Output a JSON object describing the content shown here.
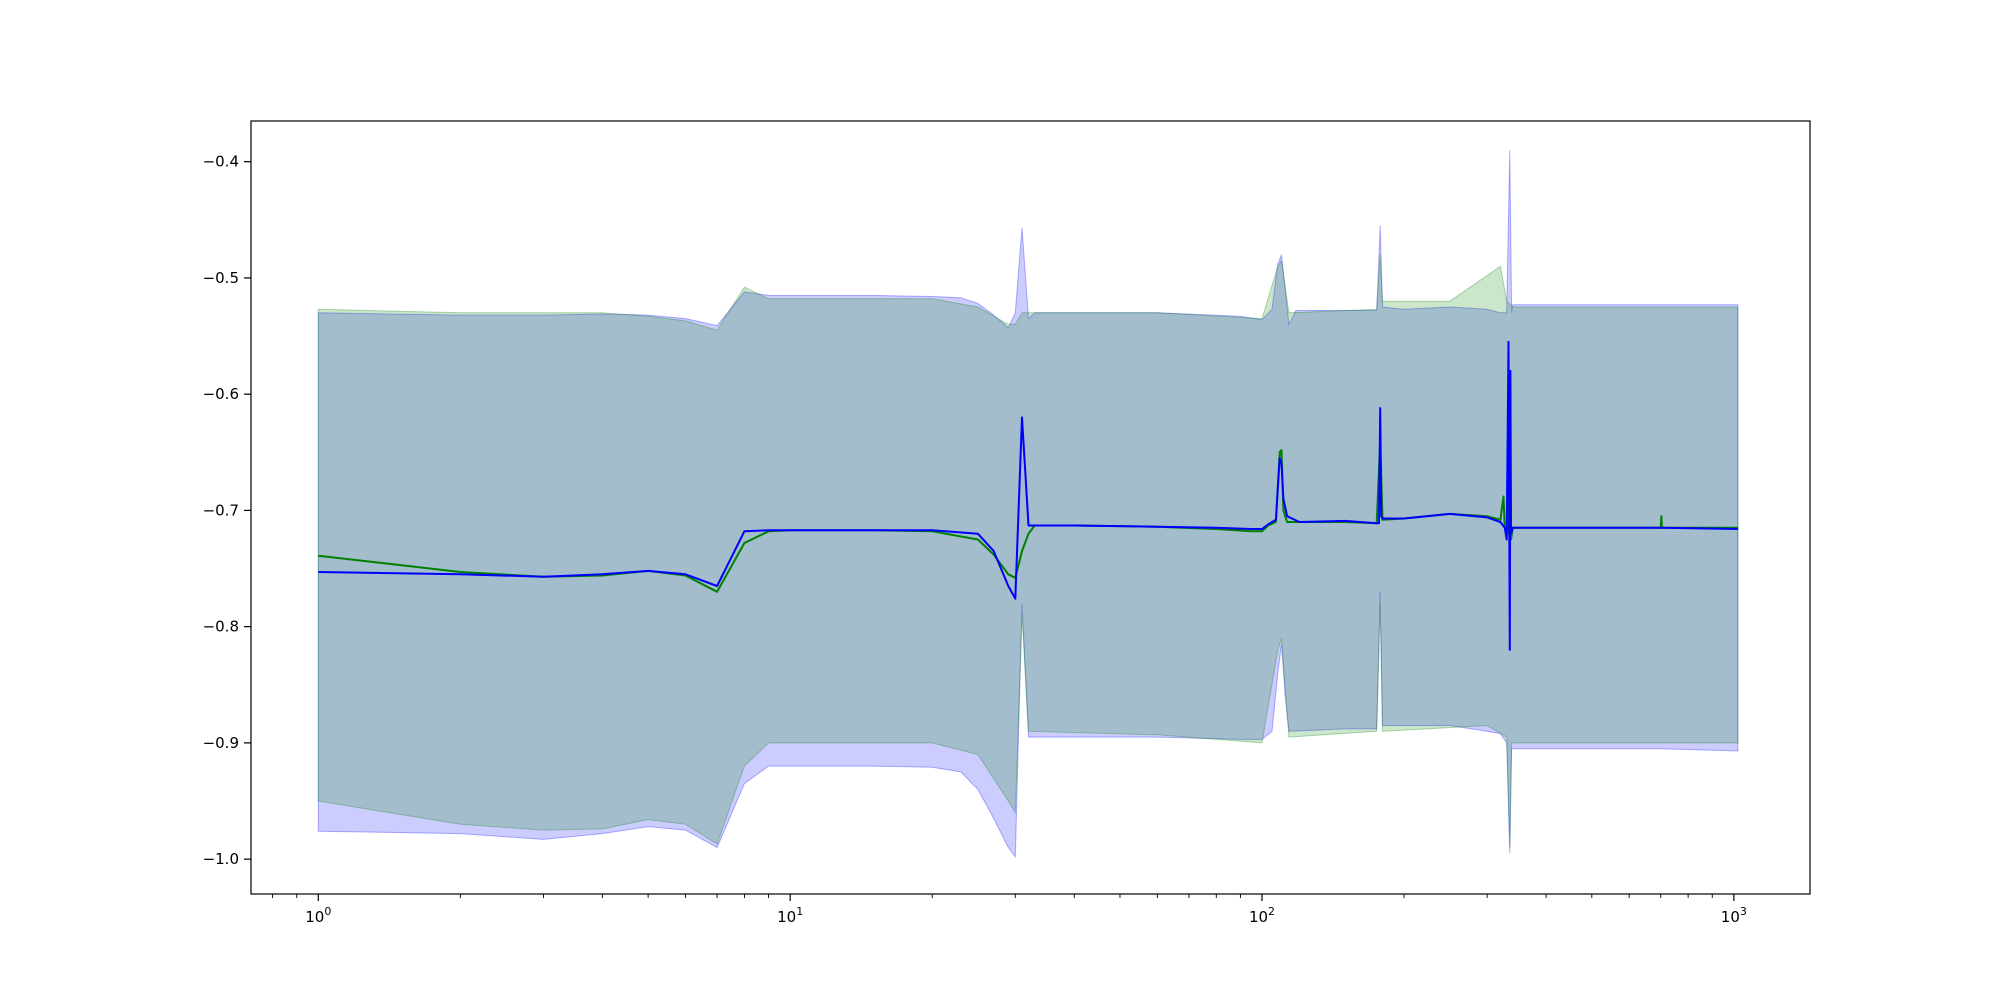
{
  "chart_data": {
    "type": "line",
    "x_scale": "log",
    "xlim": [
      0.72,
      1450
    ],
    "ylim": [
      -1.03,
      -0.365
    ],
    "grid": false,
    "legend": "none",
    "xticks": [
      {
        "value": 1,
        "base": "10",
        "exp": "0"
      },
      {
        "value": 10,
        "base": "10",
        "exp": "1"
      },
      {
        "value": 100,
        "base": "10",
        "exp": "2"
      },
      {
        "value": 1000,
        "base": "10",
        "exp": "3"
      }
    ],
    "yticks": [
      {
        "value": -0.4,
        "label": "−0.4"
      },
      {
        "value": -0.5,
        "label": "−0.5"
      },
      {
        "value": -0.6,
        "label": "−0.6"
      },
      {
        "value": -0.7,
        "label": "−0.7"
      },
      {
        "value": -0.8,
        "label": "−0.8"
      },
      {
        "value": -0.9,
        "label": "−0.9"
      },
      {
        "value": -1.0,
        "label": "−1.0"
      }
    ],
    "bands": [
      {
        "color": "#0000ff",
        "opacity": 0.2,
        "upper": [
          [
            1,
            -0.53
          ],
          [
            2,
            -0.532
          ],
          [
            3,
            -0.532
          ],
          [
            4,
            -0.531
          ],
          [
            5,
            -0.532
          ],
          [
            6,
            -0.535
          ],
          [
            7,
            -0.541
          ],
          [
            8,
            -0.512
          ],
          [
            9,
            -0.515
          ],
          [
            10,
            -0.515
          ],
          [
            15,
            -0.515
          ],
          [
            20,
            -0.516
          ],
          [
            23,
            -0.517
          ],
          [
            25,
            -0.522
          ],
          [
            27,
            -0.532
          ],
          [
            29,
            -0.543
          ],
          [
            30,
            -0.53
          ],
          [
            31,
            -0.457
          ],
          [
            32,
            -0.535
          ],
          [
            33,
            -0.53
          ],
          [
            40,
            -0.53
          ],
          [
            60,
            -0.53
          ],
          [
            90,
            -0.533
          ],
          [
            100,
            -0.536
          ],
          [
            105,
            -0.527
          ],
          [
            108,
            -0.488
          ],
          [
            110,
            -0.48
          ],
          [
            112,
            -0.51
          ],
          [
            114,
            -0.54
          ],
          [
            118,
            -0.528
          ],
          [
            150,
            -0.528
          ],
          [
            175,
            -0.528
          ],
          [
            178,
            -0.455
          ],
          [
            180,
            -0.525
          ],
          [
            200,
            -0.527
          ],
          [
            250,
            -0.525
          ],
          [
            300,
            -0.527
          ],
          [
            320,
            -0.53
          ],
          [
            330,
            -0.53
          ],
          [
            335,
            -0.39
          ],
          [
            338,
            -0.53
          ],
          [
            340,
            -0.523
          ],
          [
            500,
            -0.523
          ],
          [
            700,
            -0.523
          ],
          [
            1020,
            -0.523
          ]
        ],
        "lower": [
          [
            1,
            -0.976
          ],
          [
            2,
            -0.978
          ],
          [
            3,
            -0.983
          ],
          [
            4,
            -0.978
          ],
          [
            5,
            -0.972
          ],
          [
            6,
            -0.975
          ],
          [
            7,
            -0.99
          ],
          [
            8,
            -0.935
          ],
          [
            9,
            -0.92
          ],
          [
            10,
            -0.92
          ],
          [
            15,
            -0.92
          ],
          [
            20,
            -0.921
          ],
          [
            23,
            -0.925
          ],
          [
            25,
            -0.94
          ],
          [
            27,
            -0.965
          ],
          [
            29,
            -0.99
          ],
          [
            30,
            -0.998
          ],
          [
            31,
            -0.78
          ],
          [
            32,
            -0.895
          ],
          [
            40,
            -0.895
          ],
          [
            60,
            -0.895
          ],
          [
            90,
            -0.897
          ],
          [
            100,
            -0.897
          ],
          [
            105,
            -0.89
          ],
          [
            108,
            -0.84
          ],
          [
            110,
            -0.815
          ],
          [
            112,
            -0.86
          ],
          [
            114,
            -0.89
          ],
          [
            150,
            -0.888
          ],
          [
            175,
            -0.888
          ],
          [
            178,
            -0.77
          ],
          [
            180,
            -0.885
          ],
          [
            250,
            -0.885
          ],
          [
            300,
            -0.89
          ],
          [
            320,
            -0.892
          ],
          [
            330,
            -0.9
          ],
          [
            335,
            -0.995
          ],
          [
            338,
            -0.905
          ],
          [
            500,
            -0.905
          ],
          [
            700,
            -0.905
          ],
          [
            1020,
            -0.907
          ]
        ]
      },
      {
        "color": "#008000",
        "opacity": 0.2,
        "upper": [
          [
            1,
            -0.527
          ],
          [
            2,
            -0.53
          ],
          [
            3,
            -0.53
          ],
          [
            4,
            -0.53
          ],
          [
            5,
            -0.533
          ],
          [
            6,
            -0.537
          ],
          [
            7,
            -0.545
          ],
          [
            8,
            -0.508
          ],
          [
            9,
            -0.518
          ],
          [
            10,
            -0.518
          ],
          [
            20,
            -0.518
          ],
          [
            25,
            -0.525
          ],
          [
            29,
            -0.54
          ],
          [
            30,
            -0.54
          ],
          [
            31,
            -0.53
          ],
          [
            33,
            -0.53
          ],
          [
            60,
            -0.53
          ],
          [
            100,
            -0.535
          ],
          [
            108,
            -0.49
          ],
          [
            110,
            -0.485
          ],
          [
            114,
            -0.53
          ],
          [
            175,
            -0.527
          ],
          [
            178,
            -0.48
          ],
          [
            180,
            -0.52
          ],
          [
            250,
            -0.52
          ],
          [
            320,
            -0.49
          ],
          [
            330,
            -0.52
          ],
          [
            340,
            -0.525
          ],
          [
            1020,
            -0.525
          ]
        ],
        "lower": [
          [
            1,
            -0.95
          ],
          [
            2,
            -0.97
          ],
          [
            3,
            -0.975
          ],
          [
            4,
            -0.974
          ],
          [
            5,
            -0.966
          ],
          [
            6,
            -0.97
          ],
          [
            7,
            -0.987
          ],
          [
            8,
            -0.92
          ],
          [
            9,
            -0.9
          ],
          [
            10,
            -0.9
          ],
          [
            20,
            -0.9
          ],
          [
            25,
            -0.91
          ],
          [
            29,
            -0.95
          ],
          [
            30,
            -0.96
          ],
          [
            31,
            -0.79
          ],
          [
            32,
            -0.89
          ],
          [
            60,
            -0.893
          ],
          [
            100,
            -0.9
          ],
          [
            108,
            -0.82
          ],
          [
            110,
            -0.81
          ],
          [
            114,
            -0.895
          ],
          [
            175,
            -0.89
          ],
          [
            178,
            -0.78
          ],
          [
            180,
            -0.89
          ],
          [
            300,
            -0.885
          ],
          [
            330,
            -0.895
          ],
          [
            335,
            -0.99
          ],
          [
            338,
            -0.9
          ],
          [
            500,
            -0.9
          ],
          [
            1020,
            -0.9
          ]
        ]
      }
    ],
    "series": [
      {
        "color": "#008000",
        "points": [
          [
            1,
            -0.739
          ],
          [
            2,
            -0.753
          ],
          [
            3,
            -0.757
          ],
          [
            4,
            -0.756
          ],
          [
            5,
            -0.752
          ],
          [
            6,
            -0.756
          ],
          [
            7,
            -0.77
          ],
          [
            8,
            -0.728
          ],
          [
            9,
            -0.718
          ],
          [
            10,
            -0.717
          ],
          [
            15,
            -0.717
          ],
          [
            20,
            -0.718
          ],
          [
            25,
            -0.725
          ],
          [
            27,
            -0.738
          ],
          [
            29,
            -0.755
          ],
          [
            30,
            -0.758
          ],
          [
            31,
            -0.735
          ],
          [
            32,
            -0.72
          ],
          [
            33,
            -0.713
          ],
          [
            40,
            -0.713
          ],
          [
            60,
            -0.714
          ],
          [
            80,
            -0.716
          ],
          [
            95,
            -0.718
          ],
          [
            100,
            -0.718
          ],
          [
            103,
            -0.713
          ],
          [
            107,
            -0.71
          ],
          [
            109,
            -0.65
          ],
          [
            110,
            -0.648
          ],
          [
            111,
            -0.7
          ],
          [
            113,
            -0.71
          ],
          [
            120,
            -0.71
          ],
          [
            150,
            -0.71
          ],
          [
            175,
            -0.711
          ],
          [
            178,
            -0.64
          ],
          [
            180,
            -0.708
          ],
          [
            200,
            -0.707
          ],
          [
            250,
            -0.703
          ],
          [
            300,
            -0.705
          ],
          [
            320,
            -0.708
          ],
          [
            325,
            -0.688
          ],
          [
            327,
            -0.715
          ],
          [
            333,
            -0.72
          ],
          [
            335,
            -0.6
          ],
          [
            337,
            -0.725
          ],
          [
            340,
            -0.715
          ],
          [
            500,
            -0.715
          ],
          [
            700,
            -0.715
          ],
          [
            702,
            -0.705
          ],
          [
            704,
            -0.715
          ],
          [
            1020,
            -0.715
          ]
        ]
      },
      {
        "color": "#0000ff",
        "points": [
          [
            1,
            -0.753
          ],
          [
            2,
            -0.755
          ],
          [
            3,
            -0.757
          ],
          [
            4,
            -0.755
          ],
          [
            5,
            -0.752
          ],
          [
            6,
            -0.755
          ],
          [
            7,
            -0.765
          ],
          [
            8,
            -0.718
          ],
          [
            9,
            -0.717
          ],
          [
            10,
            -0.717
          ],
          [
            15,
            -0.717
          ],
          [
            20,
            -0.717
          ],
          [
            25,
            -0.72
          ],
          [
            27,
            -0.735
          ],
          [
            29,
            -0.765
          ],
          [
            30,
            -0.776
          ],
          [
            31,
            -0.62
          ],
          [
            32,
            -0.713
          ],
          [
            40,
            -0.713
          ],
          [
            60,
            -0.714
          ],
          [
            80,
            -0.715
          ],
          [
            95,
            -0.716
          ],
          [
            100,
            -0.716
          ],
          [
            103,
            -0.712
          ],
          [
            107,
            -0.708
          ],
          [
            109,
            -0.655
          ],
          [
            110,
            -0.66
          ],
          [
            111,
            -0.69
          ],
          [
            113,
            -0.705
          ],
          [
            120,
            -0.71
          ],
          [
            150,
            -0.709
          ],
          [
            175,
            -0.711
          ],
          [
            177,
            -0.711
          ],
          [
            178,
            -0.612
          ],
          [
            179,
            -0.705
          ],
          [
            180,
            -0.707
          ],
          [
            200,
            -0.707
          ],
          [
            250,
            -0.703
          ],
          [
            300,
            -0.706
          ],
          [
            320,
            -0.71
          ],
          [
            327,
            -0.715
          ],
          [
            330,
            -0.725
          ],
          [
            333,
            -0.555
          ],
          [
            335,
            -0.82
          ],
          [
            336,
            -0.58
          ],
          [
            337,
            -0.72
          ],
          [
            340,
            -0.715
          ],
          [
            500,
            -0.715
          ],
          [
            700,
            -0.715
          ],
          [
            1020,
            -0.716
          ]
        ]
      }
    ]
  }
}
